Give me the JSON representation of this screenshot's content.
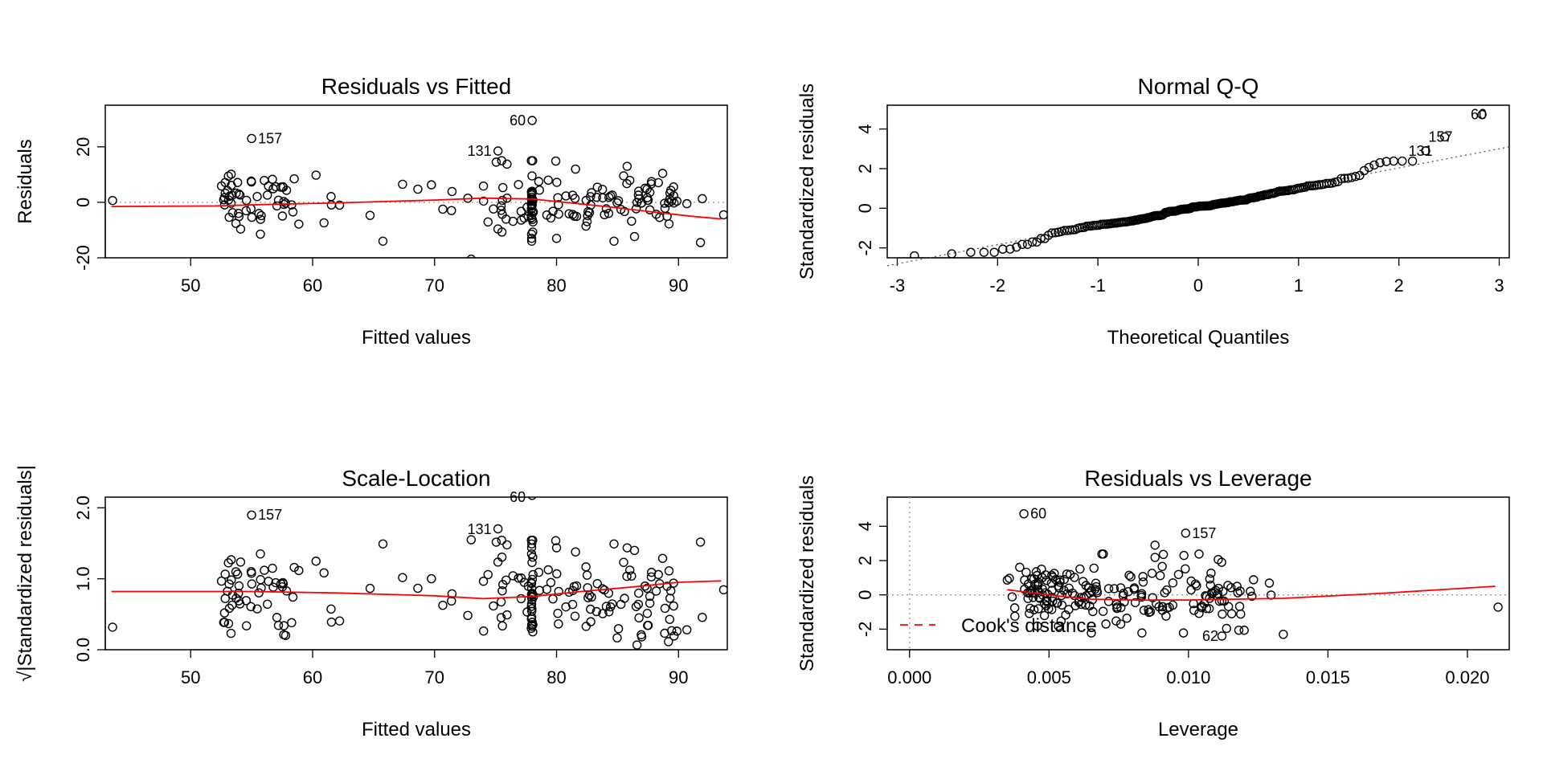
{
  "colors": {
    "points": "#000000",
    "smooth": "#ff0000",
    "refline": "#999999",
    "cook": "#ff0000"
  },
  "chart_data": [
    {
      "type": "scatter",
      "id": "rvf",
      "title": "Residuals vs Fitted",
      "xlabel": "Fitted values",
      "ylabel": "Residuals",
      "xlim": [
        43,
        94
      ],
      "ylim": [
        -20,
        35
      ],
      "xticks": [
        50,
        60,
        70,
        80,
        90
      ],
      "yticks": [
        -20,
        0,
        20
      ],
      "hline": 0,
      "smooth": [
        [
          43.5,
          -1.5
        ],
        [
          52,
          -1.3
        ],
        [
          56,
          -0.8
        ],
        [
          62,
          -0.2
        ],
        [
          70,
          0.8
        ],
        [
          74,
          1.5
        ],
        [
          78,
          1.2
        ],
        [
          80,
          0.3
        ],
        [
          84,
          -1.5
        ],
        [
          88,
          -3.5
        ],
        [
          91,
          -5
        ],
        [
          93.5,
          -6
        ]
      ],
      "labels": [
        {
          "text": "157",
          "x": 55,
          "y": 23
        },
        {
          "text": "131",
          "x": 75.2,
          "y": 18.5
        },
        {
          "text": "60",
          "x": 78,
          "y": 29.5
        }
      ]
    },
    {
      "type": "scatter",
      "id": "qq",
      "title": "Normal Q-Q",
      "xlabel": "Theoretical Quantiles",
      "ylabel": "Standardized residuals",
      "xlim": [
        -3.1,
        3.1
      ],
      "ylim": [
        -2.5,
        5.2
      ],
      "xticks": [
        -3,
        -2,
        -1,
        0,
        1,
        2,
        3
      ],
      "yticks": [
        -2,
        0,
        2,
        4
      ],
      "refline": [
        [
          -3.1,
          -2.9
        ],
        [
          3.1,
          3.1
        ]
      ],
      "labels": [
        {
          "text": "60",
          "x": 2.94,
          "y": 4.73
        },
        {
          "text": "157",
          "x": 2.6,
          "y": 3.6
        },
        {
          "text": "131",
          "x": 2.4,
          "y": 2.9
        }
      ]
    },
    {
      "type": "scatter",
      "id": "sl",
      "title": "Scale-Location",
      "xlabel": "Fitted values",
      "ylabel": "√|Standardized residuals|",
      "xlim": [
        43,
        94
      ],
      "ylim": [
        0,
        2.15
      ],
      "xticks": [
        50,
        60,
        70,
        80,
        90
      ],
      "yticks": [
        0.0,
        1.0,
        2.0
      ],
      "ytick_labels": [
        "0.0",
        "1.0",
        "2.0"
      ],
      "smooth": [
        [
          43.5,
          0.82
        ],
        [
          55,
          0.82
        ],
        [
          62,
          0.8
        ],
        [
          70,
          0.76
        ],
        [
          74,
          0.72
        ],
        [
          78,
          0.75
        ],
        [
          82,
          0.82
        ],
        [
          86,
          0.88
        ],
        [
          90,
          0.95
        ],
        [
          93.5,
          0.97
        ]
      ],
      "labels": [
        {
          "text": "157",
          "x": 55,
          "y": 1.9
        },
        {
          "text": "131",
          "x": 75.2,
          "y": 1.7
        },
        {
          "text": "60",
          "x": 78,
          "y": 2.15
        }
      ]
    },
    {
      "type": "scatter",
      "id": "rvl",
      "title": "Residuals vs Leverage",
      "xlabel": "Leverage",
      "ylabel": "Standardized residuals",
      "xlim": [
        -0.0008,
        0.0215
      ],
      "ylim": [
        -3.2,
        5.7
      ],
      "xticks": [
        0.0,
        0.005,
        0.01,
        0.015,
        0.02
      ],
      "xtick_labels": [
        "0.000",
        "0.005",
        "0.010",
        "0.015",
        "0.020"
      ],
      "yticks": [
        -2,
        0,
        2,
        4
      ],
      "hline": 0,
      "vline": 0,
      "smooth": [
        [
          0.0035,
          0.3
        ],
        [
          0.0045,
          0.1
        ],
        [
          0.0055,
          -0.1
        ],
        [
          0.0065,
          -0.25
        ],
        [
          0.008,
          -0.3
        ],
        [
          0.01,
          -0.3
        ],
        [
          0.0134,
          -0.2
        ],
        [
          0.017,
          0.1
        ],
        [
          0.021,
          0.5
        ]
      ],
      "labels": [
        {
          "text": "60",
          "x": 0.0041,
          "y": 4.73
        },
        {
          "text": "157",
          "x": 0.0099,
          "y": 3.6
        },
        {
          "text": "62",
          "x": 0.0113,
          "y": -2.4
        }
      ],
      "legend": {
        "label": "Cook's distance",
        "position": "bottom-left"
      }
    }
  ]
}
